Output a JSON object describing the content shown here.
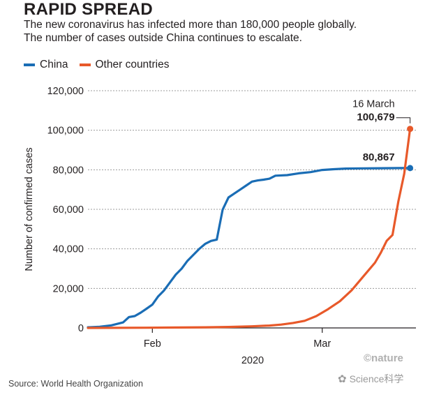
{
  "title": "RAPID SPREAD",
  "subtitle_lines": [
    "The new coronavirus has infected more than 180,000 people globally.",
    "The number of cases outside China continues to escalate."
  ],
  "source": "Source: World Health Organization",
  "credit": "©nature",
  "watermark": "Science科学",
  "colors": {
    "china": "#1a6db5",
    "other": "#e8592a",
    "grid": "#9b9b9b"
  },
  "chart_data": {
    "type": "line",
    "xlabel": "2020",
    "ylabel": "Number of confirmed cases",
    "ylim": [
      0,
      120000
    ],
    "yticks": [
      0,
      20000,
      40000,
      60000,
      80000,
      100000,
      120000
    ],
    "ytick_labels": [
      "0",
      "20,000",
      "40,000",
      "60,000",
      "80,000",
      "100,000",
      "120,000"
    ],
    "xticks": [
      {
        "date": "2020-02-01",
        "label": "Feb"
      },
      {
        "date": "2020-03-01",
        "label": "Mar"
      }
    ],
    "xlim": [
      "2020-01-21",
      "2020-03-17"
    ],
    "annotations": [
      {
        "series": "Other countries",
        "date": "2020-03-16",
        "lines": [
          "16 March",
          "100,679"
        ]
      },
      {
        "series": "China",
        "date": "2020-03-16",
        "lines": [
          "80,867"
        ]
      }
    ],
    "series": [
      {
        "name": "China",
        "points": [
          [
            "2020-01-21",
            300
          ],
          [
            "2020-01-23",
            600
          ],
          [
            "2020-01-25",
            1300
          ],
          [
            "2020-01-27",
            2800
          ],
          [
            "2020-01-28",
            5500
          ],
          [
            "2020-01-29",
            6000
          ],
          [
            "2020-01-30",
            7700
          ],
          [
            "2020-01-31",
            9700
          ],
          [
            "2020-02-01",
            11800
          ],
          [
            "2020-02-02",
            16000
          ],
          [
            "2020-02-03",
            19000
          ],
          [
            "2020-02-04",
            23000
          ],
          [
            "2020-02-05",
            27000
          ],
          [
            "2020-02-06",
            30000
          ],
          [
            "2020-02-07",
            34000
          ],
          [
            "2020-02-08",
            37000
          ],
          [
            "2020-02-09",
            40000
          ],
          [
            "2020-02-10",
            42500
          ],
          [
            "2020-02-11",
            44000
          ],
          [
            "2020-02-12",
            44700
          ],
          [
            "2020-02-13",
            59800
          ],
          [
            "2020-02-14",
            66000
          ],
          [
            "2020-02-15",
            68000
          ],
          [
            "2020-02-16",
            70000
          ],
          [
            "2020-02-17",
            72000
          ],
          [
            "2020-02-18",
            74000
          ],
          [
            "2020-02-19",
            74600
          ],
          [
            "2020-02-20",
            75000
          ],
          [
            "2020-02-21",
            75500
          ],
          [
            "2020-02-22",
            77000
          ],
          [
            "2020-02-24",
            77300
          ],
          [
            "2020-02-26",
            78200
          ],
          [
            "2020-02-28",
            78800
          ],
          [
            "2020-03-01",
            79900
          ],
          [
            "2020-03-03",
            80300
          ],
          [
            "2020-03-05",
            80600
          ],
          [
            "2020-03-08",
            80700
          ],
          [
            "2020-03-11",
            80800
          ],
          [
            "2020-03-14",
            80850
          ],
          [
            "2020-03-16",
            80867
          ]
        ]
      },
      {
        "name": "Other countries",
        "points": [
          [
            "2020-01-21",
            0
          ],
          [
            "2020-01-31",
            100
          ],
          [
            "2020-02-05",
            200
          ],
          [
            "2020-02-10",
            300
          ],
          [
            "2020-02-14",
            500
          ],
          [
            "2020-02-18",
            800
          ],
          [
            "2020-02-21",
            1200
          ],
          [
            "2020-02-23",
            1700
          ],
          [
            "2020-02-25",
            2500
          ],
          [
            "2020-02-27",
            3600
          ],
          [
            "2020-02-29",
            6000
          ],
          [
            "2020-03-02",
            9500
          ],
          [
            "2020-03-04",
            13500
          ],
          [
            "2020-03-06",
            19000
          ],
          [
            "2020-03-08",
            26000
          ],
          [
            "2020-03-10",
            33000
          ],
          [
            "2020-03-11",
            38000
          ],
          [
            "2020-03-12",
            44000
          ],
          [
            "2020-03-13",
            47000
          ],
          [
            "2020-03-14",
            64000
          ],
          [
            "2020-03-15",
            78000
          ],
          [
            "2020-03-16",
            100679
          ]
        ]
      }
    ]
  }
}
